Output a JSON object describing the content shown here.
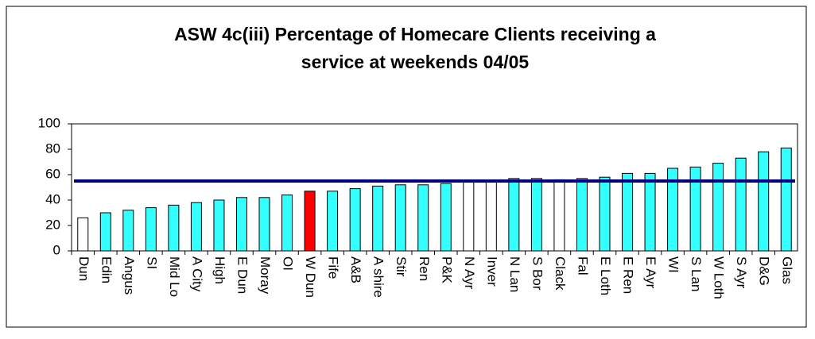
{
  "chart_data": {
    "type": "bar",
    "title": [
      "ASW 4c(iii) Percentage of Homecare Clients receiving a",
      "service  at weekends  04/05"
    ],
    "categories": [
      "Dun",
      "Edin",
      "Angus",
      "SI",
      "Mid Lo",
      "A City",
      "High",
      "E Dun",
      "Moray",
      "OI",
      "W Dun",
      "Fife",
      "A&B",
      "A shire",
      "Stir",
      "Ren",
      "P&K",
      "N Ayr",
      "Inver",
      "N Lan",
      "S Bor",
      "Clack",
      "Fal",
      "E Loth",
      "E Ren",
      "E Ayr",
      "WI",
      "S Lan",
      "W Loth",
      "S Ayr",
      "D&G",
      "Glas"
    ],
    "values": [
      26,
      30,
      32,
      34,
      36,
      38,
      40,
      42,
      42,
      44,
      47,
      47,
      49,
      51,
      52,
      52,
      53,
      55,
      55,
      57,
      57,
      56,
      57,
      58,
      61,
      61,
      65,
      66,
      69,
      73,
      78,
      81
    ],
    "colors": [
      "#ffffff",
      "#33ffff",
      "#33ffff",
      "#33ffff",
      "#33ffff",
      "#33ffff",
      "#33ffff",
      "#33ffff",
      "#33ffff",
      "#33ffff",
      "#ff0000",
      "#33ffff",
      "#33ffff",
      "#33ffff",
      "#33ffff",
      "#33ffff",
      "#33ffff",
      "#ffffff",
      "#ffffff",
      "#33ffff",
      "#33ffff",
      "#ffffff",
      "#33ffff",
      "#33ffff",
      "#33ffff",
      "#33ffff",
      "#33ffff",
      "#33ffff",
      "#33ffff",
      "#33ffff",
      "#33ffff",
      "#33ffff"
    ],
    "reference_line": {
      "value": 55,
      "color": "#000080"
    },
    "ylim": [
      0,
      100
    ],
    "yticks": [
      0,
      20,
      40,
      60,
      80,
      100
    ],
    "grid": false
  }
}
